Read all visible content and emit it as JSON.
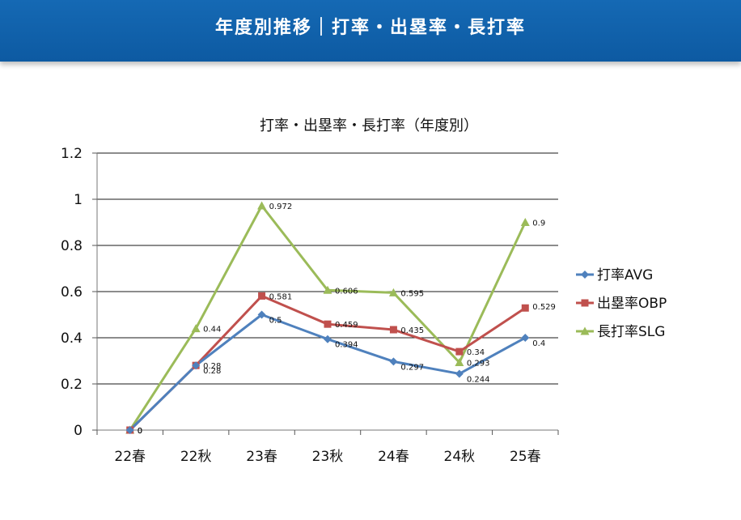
{
  "header": {
    "title": "年度別推移｜打率・出塁率・長打率"
  },
  "chart_data": {
    "type": "line",
    "title": "打率・出塁率・長打率（年度別）",
    "xlabel": "",
    "ylabel": "",
    "categories": [
      "22春",
      "22秋",
      "23春",
      "23秋",
      "24春",
      "24秋",
      "25春"
    ],
    "ylim": [
      0,
      1.2
    ],
    "yticks": [
      "0",
      "0.2",
      "0.4",
      "0.6",
      "0.8",
      "1",
      "1.2"
    ],
    "grid": true,
    "legend": "right",
    "series": [
      {
        "name": "打率AVG",
        "color": "#4f81bd",
        "marker": "diamond",
        "values": [
          0,
          0.28,
          0.5,
          0.394,
          0.297,
          0.244,
          0.4
        ],
        "labels": [
          "0",
          "0.28",
          "0.5",
          "0.394",
          "0.297",
          "0.244",
          "0.4"
        ]
      },
      {
        "name": "出塁率OBP",
        "color": "#c0504d",
        "marker": "square",
        "values": [
          0,
          0.28,
          0.581,
          0.459,
          0.435,
          0.34,
          0.529
        ],
        "labels": [
          "0",
          "0.28",
          "0.581",
          "0.459",
          "0.435",
          "0.34",
          "0.529"
        ]
      },
      {
        "name": "長打率SLG",
        "color": "#9bbb59",
        "marker": "triangle",
        "values": [
          0,
          0.44,
          0.972,
          0.606,
          0.595,
          0.293,
          0.9
        ],
        "labels": [
          "0",
          "0.44",
          "0.972",
          "0.606",
          "0.595",
          "0.293",
          "0.9"
        ]
      }
    ]
  }
}
